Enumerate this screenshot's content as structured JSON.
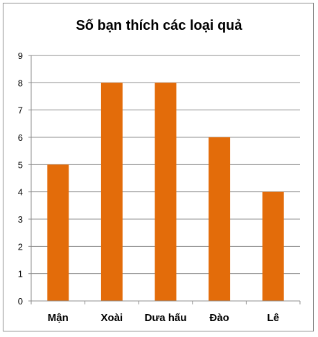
{
  "chart_data": {
    "type": "bar",
    "title": "Số bạn thích các loại quả",
    "xlabel": "",
    "ylabel": "",
    "categories": [
      "Mận",
      "Xoài",
      "Dưa hấu",
      "Đào",
      "Lê"
    ],
    "values": [
      5,
      8,
      8,
      6,
      4
    ],
    "ylim": [
      0,
      9
    ],
    "yticks": [
      "0",
      "1",
      "2",
      "3",
      "4",
      "5",
      "6",
      "7",
      "8",
      "9"
    ],
    "grid": true,
    "legend": "none",
    "bar_color": "#e36c0a"
  }
}
